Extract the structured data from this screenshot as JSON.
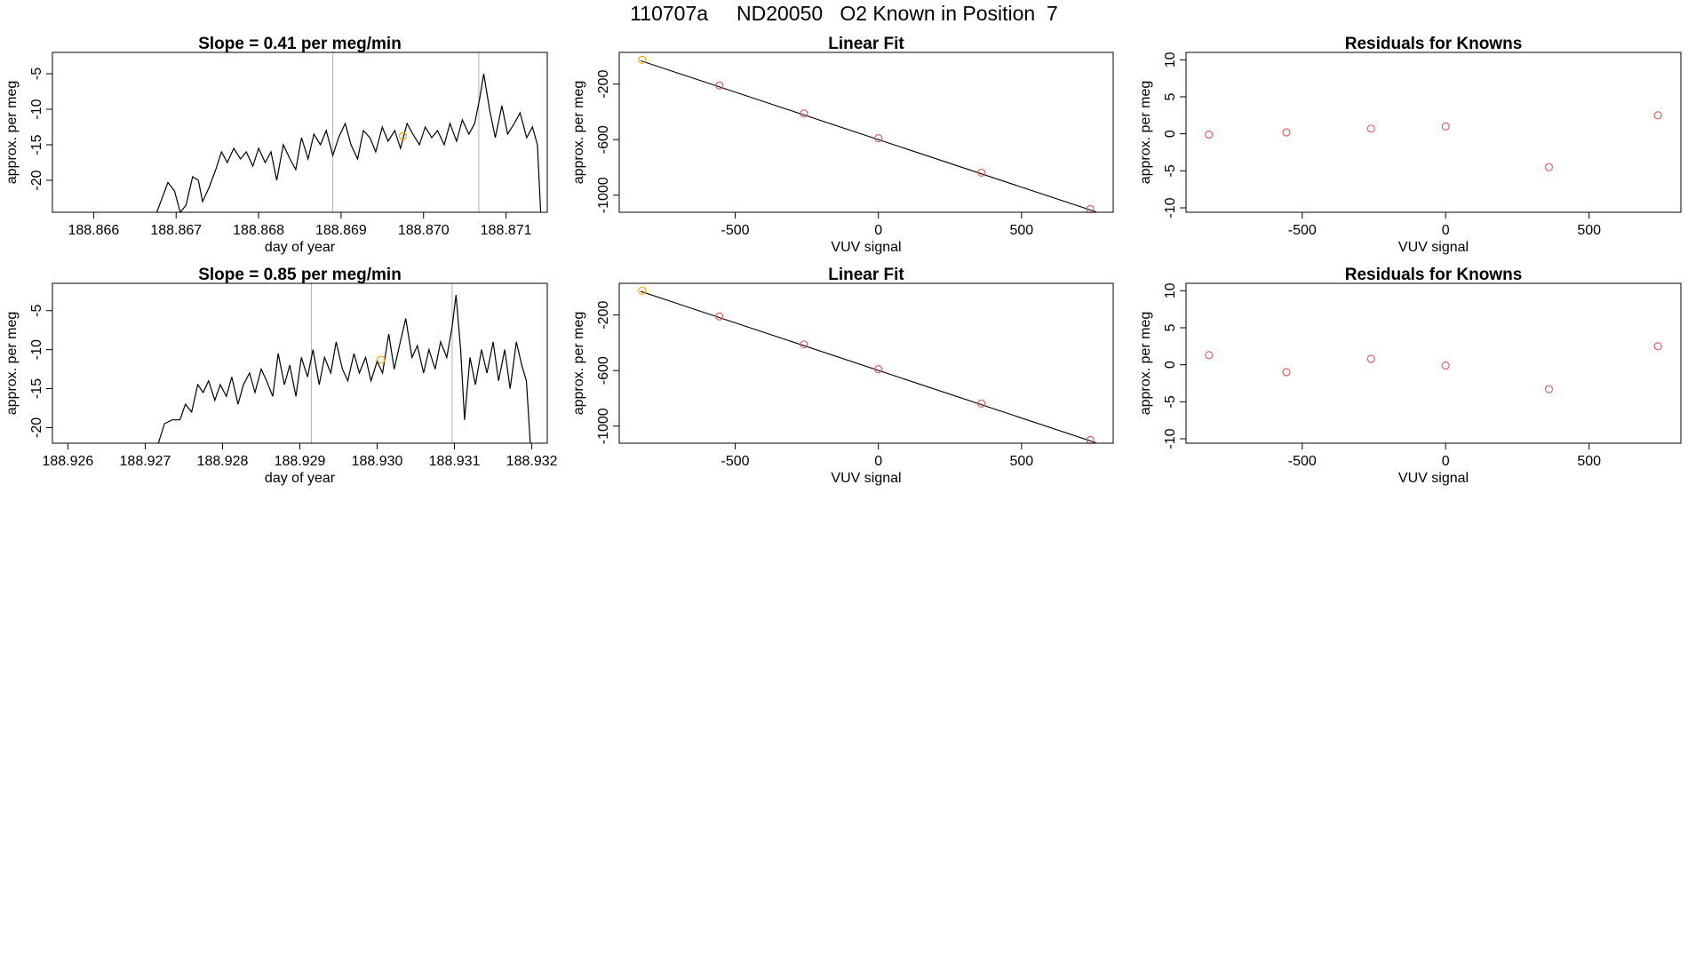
{
  "figure": {
    "title": "110707a     ND20050   O2 Known in Position  7"
  },
  "colors": {
    "trace": "#000000",
    "marker_known": "#ffa500",
    "marker_fit": "#e06060",
    "fit_line": "#000000",
    "vertical_lines": "#b0b0b0",
    "axis": "#000000"
  },
  "chart_data": [
    {
      "type": "line",
      "title": "Slope =  0.41  per meg/min",
      "xlabel": "day of year",
      "ylabel": "approx. per meg",
      "xlim": [
        188.8655,
        188.8715
      ],
      "ylim": [
        -24.5,
        -2
      ],
      "xticks": [
        188.866,
        188.867,
        188.868,
        188.869,
        188.87,
        188.871
      ],
      "xtick_labels": [
        "188.866",
        "188.867",
        "188.868",
        "188.869",
        "188.870",
        "188.871"
      ],
      "yticks": [
        -5,
        -10,
        -15,
        -20
      ],
      "ytick_labels": [
        "-5",
        "-10",
        "-15",
        "-20"
      ],
      "vlines": [
        188.8689,
        188.87067
      ],
      "marker": {
        "x": 188.86975,
        "y": -13.8
      },
      "series": [
        {
          "values": [
            [
              188.86675,
              -25
            ],
            [
              188.8669,
              -20.3
            ],
            [
              188.86698,
              -21.5
            ],
            [
              188.86705,
              -24.5
            ],
            [
              188.86712,
              -23.5
            ],
            [
              188.8672,
              -19.5
            ],
            [
              188.86727,
              -20
            ],
            [
              188.86732,
              -23
            ],
            [
              188.8674,
              -21
            ],
            [
              188.86748,
              -18.5
            ],
            [
              188.86755,
              -16
            ],
            [
              188.86762,
              -17.5
            ],
            [
              188.8677,
              -15.5
            ],
            [
              188.86778,
              -17
            ],
            [
              188.86785,
              -16
            ],
            [
              188.86793,
              -18
            ],
            [
              188.868,
              -15.5
            ],
            [
              188.86808,
              -17.5
            ],
            [
              188.86815,
              -16
            ],
            [
              188.86822,
              -20
            ],
            [
              188.8683,
              -15
            ],
            [
              188.86838,
              -17
            ],
            [
              188.86845,
              -18.5
            ],
            [
              188.86852,
              -14
            ],
            [
              188.8686,
              -17
            ],
            [
              188.86867,
              -13.5
            ],
            [
              188.86875,
              -15
            ],
            [
              188.86882,
              -13
            ],
            [
              188.8689,
              -16.5
            ],
            [
              188.86897,
              -14
            ],
            [
              188.86905,
              -12
            ],
            [
              188.86912,
              -15
            ],
            [
              188.8692,
              -17
            ],
            [
              188.86927,
              -13
            ],
            [
              188.86935,
              -14
            ],
            [
              188.86942,
              -16
            ],
            [
              188.8695,
              -12.5
            ],
            [
              188.86957,
              -14.5
            ],
            [
              188.86965,
              -13
            ],
            [
              188.86972,
              -15.5
            ],
            [
              188.8698,
              -12
            ],
            [
              188.86987,
              -13.5
            ],
            [
              188.86995,
              -15
            ],
            [
              188.87002,
              -12.5
            ],
            [
              188.8701,
              -14
            ],
            [
              188.87017,
              -13
            ],
            [
              188.87025,
              -15
            ],
            [
              188.87032,
              -12
            ],
            [
              188.8704,
              -14.5
            ],
            [
              188.87047,
              -11.5
            ],
            [
              188.87055,
              -13.5
            ],
            [
              188.87062,
              -12
            ],
            [
              188.87068,
              -8.5
            ],
            [
              188.87073,
              -5
            ],
            [
              188.8708,
              -10
            ],
            [
              188.87087,
              -14
            ],
            [
              188.87095,
              -9.5
            ],
            [
              188.87102,
              -13.5
            ],
            [
              188.8711,
              -12
            ],
            [
              188.87117,
              -10.5
            ],
            [
              188.87125,
              -14
            ],
            [
              188.87132,
              -12.5
            ],
            [
              188.87138,
              -15
            ],
            [
              188.87142,
              -24.5
            ]
          ]
        }
      ]
    },
    {
      "type": "scatter",
      "title": "Linear Fit",
      "xlabel": "VUV signal",
      "ylabel": "approx. per meg",
      "xlim": [
        -905,
        820
      ],
      "ylim": [
        -1123,
        28
      ],
      "xticks": [
        -500,
        0,
        500
      ],
      "xtick_labels": [
        "-500",
        "0",
        "500"
      ],
      "yticks": [
        -200,
        -600,
        -1000
      ],
      "ytick_labels": [
        "-200",
        "-600",
        "-1000"
      ],
      "fit_line": [
        [
          -830,
          -32
        ],
        [
          760,
          -1120
        ]
      ],
      "points": [
        {
          "x": -825,
          "y": -25,
          "color": "known"
        },
        {
          "x": -555,
          "y": -210,
          "color": "fit"
        },
        {
          "x": -260,
          "y": -412,
          "color": "fit"
        },
        {
          "x": 0,
          "y": -590,
          "color": "fit"
        },
        {
          "x": 360,
          "y": -838,
          "color": "fit"
        },
        {
          "x": 740,
          "y": -1100,
          "color": "fit"
        }
      ]
    },
    {
      "type": "scatter",
      "title": "Residuals for Knowns",
      "xlabel": "VUV signal",
      "ylabel": "approx. per meg",
      "xlim": [
        -905,
        820
      ],
      "ylim": [
        -10.6,
        11
      ],
      "xticks": [
        -500,
        0,
        500
      ],
      "xtick_labels": [
        "-500",
        "0",
        "500"
      ],
      "yticks": [
        10,
        5,
        0,
        -5,
        -10
      ],
      "ytick_labels": [
        "10",
        "5",
        "0",
        "-5",
        "-10"
      ],
      "points": [
        {
          "x": -825,
          "y": -0.1
        },
        {
          "x": -555,
          "y": 0.2
        },
        {
          "x": -260,
          "y": 0.7
        },
        {
          "x": 0,
          "y": 1.0
        },
        {
          "x": 360,
          "y": -4.5
        },
        {
          "x": 740,
          "y": 2.5
        }
      ]
    },
    {
      "type": "line",
      "title": "Slope =  0.85  per meg/min",
      "xlabel": "day of year",
      "ylabel": "approx. per meg",
      "xlim": [
        188.9258,
        188.9322
      ],
      "ylim": [
        -22,
        -1.5
      ],
      "xticks": [
        188.926,
        188.927,
        188.928,
        188.929,
        188.93,
        188.931,
        188.932
      ],
      "xtick_labels": [
        "188.926",
        "188.927",
        "188.928",
        "188.929",
        "188.930",
        "188.931",
        "188.932"
      ],
      "yticks": [
        -5,
        -10,
        -15,
        -20
      ],
      "ytick_labels": [
        "-5",
        "-10",
        "-15",
        "-20"
      ],
      "vlines": [
        188.92915,
        188.93097
      ],
      "marker": {
        "x": 188.93005,
        "y": -11.3
      },
      "series": [
        {
          "values": [
            [
              188.92717,
              -22
            ],
            [
              188.92725,
              -19.5
            ],
            [
              188.92735,
              -19
            ],
            [
              188.92745,
              -19
            ],
            [
              188.92752,
              -17
            ],
            [
              188.9276,
              -18
            ],
            [
              188.92768,
              -14.5
            ],
            [
              188.92775,
              -15.5
            ],
            [
              188.92782,
              -14
            ],
            [
              188.9279,
              -16.5
            ],
            [
              188.92797,
              -14.5
            ],
            [
              188.92805,
              -16
            ],
            [
              188.92812,
              -13.5
            ],
            [
              188.9282,
              -17
            ],
            [
              188.92827,
              -14.5
            ],
            [
              188.92835,
              -13
            ],
            [
              188.92842,
              -15.5
            ],
            [
              188.9285,
              -12.5
            ],
            [
              188.92857,
              -14
            ],
            [
              188.92865,
              -16
            ],
            [
              188.92872,
              -10.5
            ],
            [
              188.9288,
              -14.5
            ],
            [
              188.92887,
              -12
            ],
            [
              188.92895,
              -16
            ],
            [
              188.92902,
              -11
            ],
            [
              188.9291,
              -13.5
            ],
            [
              188.92917,
              -10
            ],
            [
              188.92925,
              -14.5
            ],
            [
              188.92932,
              -11
            ],
            [
              188.9294,
              -13
            ],
            [
              188.92947,
              -9
            ],
            [
              188.92955,
              -12.5
            ],
            [
              188.92962,
              -14
            ],
            [
              188.9297,
              -10.5
            ],
            [
              188.92977,
              -13
            ],
            [
              188.92985,
              -11
            ],
            [
              188.92992,
              -14
            ],
            [
              188.93,
              -11.5
            ],
            [
              188.93007,
              -13
            ],
            [
              188.93015,
              -8
            ],
            [
              188.93022,
              -12.5
            ],
            [
              188.9303,
              -9
            ],
            [
              188.93037,
              -6
            ],
            [
              188.93045,
              -11
            ],
            [
              188.93052,
              -9.5
            ],
            [
              188.9306,
              -13
            ],
            [
              188.93067,
              -10
            ],
            [
              188.93075,
              -12.5
            ],
            [
              188.93082,
              -9
            ],
            [
              188.9309,
              -11
            ],
            [
              188.93097,
              -7
            ],
            [
              188.93102,
              -3
            ],
            [
              188.93108,
              -10
            ],
            [
              188.93113,
              -19
            ],
            [
              188.9312,
              -11
            ],
            [
              188.93127,
              -14.5
            ],
            [
              188.93135,
              -10
            ],
            [
              188.93142,
              -13
            ],
            [
              188.9315,
              -9
            ],
            [
              188.93157,
              -14
            ],
            [
              188.93165,
              -10
            ],
            [
              188.93172,
              -15
            ],
            [
              188.9318,
              -9
            ],
            [
              188.93187,
              -12
            ],
            [
              188.93193,
              -14
            ],
            [
              188.93198,
              -22
            ]
          ]
        }
      ]
    },
    {
      "type": "scatter",
      "title": "Linear Fit",
      "xlabel": "VUV signal",
      "ylabel": "approx. per meg",
      "xlim": [
        -905,
        820
      ],
      "ylim": [
        -1123,
        28
      ],
      "xticks": [
        -500,
        0,
        500
      ],
      "xtick_labels": [
        "-500",
        "0",
        "500"
      ],
      "yticks": [
        -200,
        -600,
        -1000
      ],
      "ytick_labels": [
        "-200",
        "-600",
        "-1000"
      ],
      "fit_line": [
        [
          -830,
          -30
        ],
        [
          760,
          -1120
        ]
      ],
      "points": [
        {
          "x": -825,
          "y": -25,
          "color": "known"
        },
        {
          "x": -555,
          "y": -210,
          "color": "fit"
        },
        {
          "x": -260,
          "y": -412,
          "color": "fit"
        },
        {
          "x": 0,
          "y": -590,
          "color": "fit"
        },
        {
          "x": 360,
          "y": -838,
          "color": "fit"
        },
        {
          "x": 740,
          "y": -1100,
          "color": "fit"
        }
      ]
    },
    {
      "type": "scatter",
      "title": "Residuals for Knowns",
      "xlabel": "VUV signal",
      "ylabel": "approx. per meg",
      "xlim": [
        -905,
        820
      ],
      "ylim": [
        -10.6,
        11
      ],
      "xticks": [
        -500,
        0,
        500
      ],
      "xtick_labels": [
        "-500",
        "0",
        "500"
      ],
      "yticks": [
        10,
        5,
        0,
        -5,
        -10
      ],
      "ytick_labels": [
        "10",
        "5",
        "0",
        "-5",
        "-10"
      ],
      "points": [
        {
          "x": -825,
          "y": 1.3
        },
        {
          "x": -555,
          "y": -1.0
        },
        {
          "x": -260,
          "y": 0.8
        },
        {
          "x": 0,
          "y": -0.1
        },
        {
          "x": 360,
          "y": -3.3
        },
        {
          "x": 740,
          "y": 2.5
        }
      ]
    }
  ]
}
